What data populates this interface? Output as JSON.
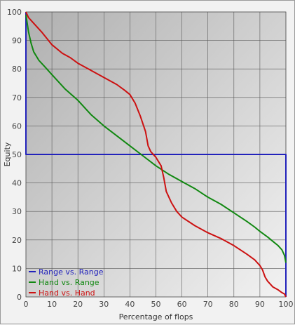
{
  "chart_data": {
    "type": "line",
    "title": "",
    "xlabel": "Percentage of flops",
    "ylabel": "Equity",
    "xlim": [
      0,
      100
    ],
    "ylim": [
      0,
      100
    ],
    "x_ticks": [
      0,
      10,
      20,
      30,
      40,
      50,
      60,
      70,
      80,
      90,
      100
    ],
    "y_ticks": [
      0,
      10,
      20,
      30,
      40,
      50,
      60,
      70,
      80,
      90,
      100
    ],
    "grid": true,
    "legend_position": "bottom-left",
    "series": [
      {
        "name": "Range vs. Range",
        "color": "#2222bb",
        "points": [
          [
            0,
            100
          ],
          [
            0,
            50
          ],
          [
            100,
            50
          ],
          [
            100,
            0
          ]
        ]
      },
      {
        "name": "Hand vs. Range",
        "color": "#118811",
        "points": [
          [
            0,
            99
          ],
          [
            1,
            93
          ],
          [
            2,
            89
          ],
          [
            3,
            86
          ],
          [
            5,
            83
          ],
          [
            7,
            81
          ],
          [
            10,
            78
          ],
          [
            15,
            73
          ],
          [
            20,
            69
          ],
          [
            25,
            64
          ],
          [
            30,
            60
          ],
          [
            35,
            56.5
          ],
          [
            40,
            53
          ],
          [
            45,
            49.5
          ],
          [
            50,
            46
          ],
          [
            55,
            43
          ],
          [
            60,
            40.5
          ],
          [
            65,
            38
          ],
          [
            70,
            35
          ],
          [
            75,
            32.5
          ],
          [
            80,
            29.5
          ],
          [
            85,
            26.5
          ],
          [
            88,
            24.5
          ],
          [
            90,
            23
          ],
          [
            93,
            21
          ],
          [
            95,
            19.5
          ],
          [
            97,
            18
          ],
          [
            98.5,
            16.5
          ],
          [
            99.5,
            14.5
          ],
          [
            100,
            12
          ]
        ]
      },
      {
        "name": "Hand vs. Hand",
        "color": "#cc1111",
        "points": [
          [
            0,
            100
          ],
          [
            1,
            98
          ],
          [
            3,
            96
          ],
          [
            6,
            93
          ],
          [
            10,
            88.5
          ],
          [
            14,
            85.5
          ],
          [
            17,
            84
          ],
          [
            20,
            82
          ],
          [
            25,
            79.5
          ],
          [
            30,
            77
          ],
          [
            35,
            74.5
          ],
          [
            38,
            72.5
          ],
          [
            40,
            71
          ],
          [
            42,
            68
          ],
          [
            44,
            63.5
          ],
          [
            46,
            58
          ],
          [
            47,
            53
          ],
          [
            48,
            51
          ],
          [
            50,
            49
          ],
          [
            52,
            46
          ],
          [
            53,
            42
          ],
          [
            54,
            37
          ],
          [
            56,
            33
          ],
          [
            58,
            30
          ],
          [
            60,
            28
          ],
          [
            65,
            25
          ],
          [
            70,
            22.5
          ],
          [
            75,
            20.5
          ],
          [
            80,
            18
          ],
          [
            85,
            15
          ],
          [
            88,
            13
          ],
          [
            90,
            11
          ],
          [
            91,
            9.5
          ],
          [
            92,
            7
          ],
          [
            93,
            5.5
          ],
          [
            94,
            4.5
          ],
          [
            95,
            3.5
          ],
          [
            97,
            2.5
          ],
          [
            98.5,
            1.5
          ],
          [
            99.5,
            1
          ],
          [
            100,
            0
          ]
        ]
      }
    ]
  },
  "background": {
    "plot_gradient_start": "#b0b0b0",
    "plot_gradient_end": "#f2f2f2",
    "grid_color": "#5a5a5a"
  }
}
